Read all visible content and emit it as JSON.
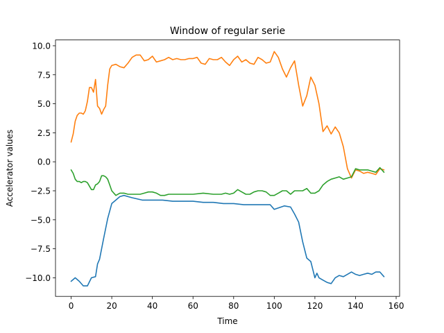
{
  "chart_data": {
    "type": "line",
    "title": "Window of regular serie",
    "xlabel": "Time",
    "ylabel": "Accelerator values",
    "xlim": [
      -7.7,
      161.7
    ],
    "ylim": [
      -11.6,
      10.5
    ],
    "xticks": [
      0,
      20,
      40,
      60,
      80,
      100,
      120,
      140,
      160
    ],
    "xtick_labels": [
      "0",
      "20",
      "40",
      "60",
      "80",
      "100",
      "120",
      "140",
      "160"
    ],
    "yticks": [
      10.0,
      7.5,
      5.0,
      2.5,
      0.0,
      -2.5,
      -5.0,
      -7.5,
      -10.0
    ],
    "ytick_labels": [
      "10.0",
      "7.5",
      "5.0",
      "2.5",
      "0.0",
      "−2.5",
      "−5.0",
      "−7.5",
      "−10.0"
    ],
    "grid": false,
    "legend": "none",
    "series": [
      {
        "color": "#1f77b4",
        "x": [
          0,
          2,
          4,
          6,
          8,
          10,
          12,
          13,
          14,
          16,
          18,
          20,
          22,
          24,
          26,
          28,
          30,
          35,
          40,
          45,
          50,
          55,
          60,
          65,
          70,
          75,
          80,
          85,
          90,
          95,
          98,
          100,
          105,
          108,
          110,
          112,
          114,
          116,
          118,
          120,
          121,
          122,
          124,
          126,
          128,
          130,
          132,
          134,
          136,
          138,
          140,
          142,
          144,
          146,
          148,
          150,
          152,
          154
        ],
        "y": [
          -10.3,
          -10.0,
          -10.3,
          -10.7,
          -10.7,
          -10.0,
          -9.9,
          -8.8,
          -8.4,
          -6.6,
          -4.9,
          -3.6,
          -3.3,
          -3.0,
          -2.9,
          -3.0,
          -3.1,
          -3.3,
          -3.3,
          -3.3,
          -3.4,
          -3.4,
          -3.4,
          -3.5,
          -3.5,
          -3.6,
          -3.6,
          -3.7,
          -3.7,
          -3.7,
          -3.7,
          -4.1,
          -3.8,
          -3.9,
          -4.5,
          -5.2,
          -6.9,
          -8.3,
          -8.6,
          -10.0,
          -9.6,
          -10.0,
          -10.2,
          -10.4,
          -10.5,
          -10.0,
          -9.8,
          -9.9,
          -9.7,
          -9.5,
          -9.7,
          -9.8,
          -9.7,
          -9.6,
          -9.7,
          -9.5,
          -9.5,
          -9.9
        ]
      },
      {
        "color": "#ff7f0e",
        "x": [
          0,
          1,
          2,
          3,
          4,
          5,
          6,
          7,
          8,
          9,
          10,
          11,
          12,
          13,
          14,
          15,
          16,
          17,
          18,
          19,
          20,
          22,
          24,
          26,
          28,
          30,
          32,
          34,
          36,
          38,
          40,
          42,
          44,
          46,
          48,
          50,
          52,
          54,
          56,
          58,
          60,
          62,
          64,
          66,
          68,
          70,
          72,
          74,
          76,
          78,
          80,
          82,
          84,
          86,
          88,
          90,
          92,
          94,
          96,
          98,
          100,
          102,
          104,
          106,
          108,
          110,
          112,
          114,
          116,
          118,
          120,
          122,
          124,
          126,
          128,
          130,
          132,
          134,
          136,
          138,
          140,
          142,
          144,
          146,
          148,
          150,
          152,
          154
        ],
        "y": [
          1.7,
          2.4,
          3.5,
          4.0,
          4.2,
          4.2,
          4.1,
          4.4,
          5.2,
          6.4,
          6.4,
          6.0,
          7.1,
          4.8,
          4.6,
          4.1,
          4.5,
          4.8,
          6.6,
          8.0,
          8.3,
          8.4,
          8.2,
          8.1,
          8.5,
          9.0,
          9.2,
          9.2,
          8.7,
          8.8,
          9.1,
          8.6,
          8.7,
          8.8,
          9.0,
          8.8,
          8.9,
          8.8,
          8.8,
          8.9,
          8.9,
          9.0,
          8.5,
          8.4,
          8.9,
          8.8,
          8.8,
          9.0,
          8.6,
          8.3,
          8.8,
          9.1,
          8.6,
          8.8,
          8.5,
          8.4,
          9.0,
          8.8,
          8.5,
          8.6,
          9.5,
          9.0,
          8.0,
          7.3,
          8.1,
          8.7,
          6.6,
          4.8,
          5.7,
          7.3,
          6.6,
          5.0,
          2.6,
          3.1,
          2.4,
          3.0,
          2.5,
          1.3,
          -0.6,
          -1.4,
          -0.7,
          -0.8,
          -1.0,
          -0.9,
          -1.0,
          -1.1,
          -0.6,
          -0.7
        ]
      },
      {
        "color": "#2ca02c",
        "x": [
          0,
          1,
          2,
          3,
          4,
          5,
          6,
          7,
          8,
          9,
          10,
          11,
          12,
          13,
          14,
          15,
          16,
          17,
          18,
          19,
          20,
          22,
          24,
          26,
          28,
          30,
          32,
          34,
          36,
          38,
          40,
          42,
          44,
          46,
          48,
          50,
          55,
          60,
          65,
          70,
          74,
          76,
          78,
          80,
          82,
          84,
          86,
          88,
          90,
          92,
          94,
          96,
          98,
          100,
          102,
          104,
          106,
          108,
          110,
          112,
          114,
          116,
          118,
          120,
          122,
          124,
          126,
          128,
          130,
          132,
          134,
          136,
          138,
          140,
          142,
          144,
          146,
          148,
          150,
          152,
          154
        ],
        "y": [
          -0.7,
          -1.0,
          -1.5,
          -1.7,
          -1.7,
          -1.8,
          -1.7,
          -1.7,
          -1.8,
          -2.1,
          -2.4,
          -2.4,
          -2.0,
          -1.9,
          -1.7,
          -1.2,
          -1.2,
          -1.3,
          -1.5,
          -2.0,
          -2.5,
          -2.9,
          -2.7,
          -2.7,
          -2.8,
          -2.8,
          -2.8,
          -2.8,
          -2.7,
          -2.6,
          -2.6,
          -2.7,
          -2.9,
          -2.9,
          -2.8,
          -2.8,
          -2.8,
          -2.8,
          -2.7,
          -2.8,
          -2.8,
          -2.7,
          -2.8,
          -2.7,
          -2.4,
          -2.6,
          -2.8,
          -2.8,
          -2.6,
          -2.5,
          -2.5,
          -2.6,
          -2.9,
          -2.9,
          -2.7,
          -2.5,
          -2.5,
          -2.8,
          -2.5,
          -2.5,
          -2.5,
          -2.3,
          -2.7,
          -2.7,
          -2.5,
          -2.0,
          -1.7,
          -1.5,
          -1.4,
          -1.3,
          -1.5,
          -1.4,
          -1.3,
          -0.6,
          -0.7,
          -0.7,
          -0.7,
          -0.8,
          -0.9,
          -0.5,
          -0.9
        ]
      }
    ]
  }
}
